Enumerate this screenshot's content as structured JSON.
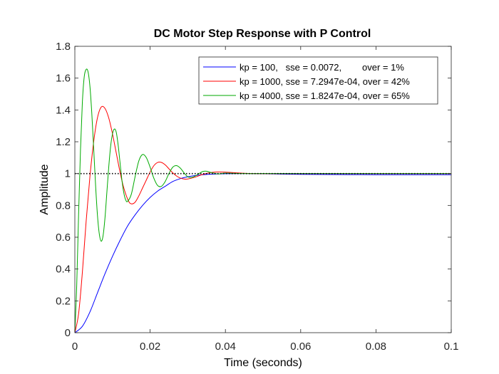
{
  "chart_data": {
    "type": "line",
    "title": "DC Motor Step Response with P Control",
    "xlabel": "Time (seconds)",
    "ylabel": "Amplitude",
    "xlim": [
      0,
      0.1
    ],
    "ylim": [
      0,
      1.8
    ],
    "xticks": [
      0,
      0.02,
      0.04,
      0.06,
      0.08,
      0.1
    ],
    "xtick_labels": [
      "0",
      "0.02",
      "0.04",
      "0.06",
      "0.08",
      "0.1"
    ],
    "yticks": [
      0,
      0.2,
      0.4,
      0.6,
      0.8,
      1,
      1.2,
      1.4,
      1.6,
      1.8
    ],
    "ytick_labels": [
      "0",
      "0.2",
      "0.4",
      "0.6",
      "0.8",
      "1",
      "1.2",
      "1.4",
      "1.6",
      "1.8"
    ],
    "grid": false,
    "legend_position": "top-right",
    "reference_line": {
      "y": 1,
      "style": "dotted",
      "color": "#000000"
    },
    "series": [
      {
        "name": "kp = 100,   sse = 0.0072,        over = 1%",
        "kp": 100,
        "sse": "0.0072",
        "overshoot_pct": 1,
        "color": "#0000ff",
        "x": [
          0,
          0.002,
          0.004,
          0.006,
          0.008,
          0.01,
          0.012,
          0.014,
          0.016,
          0.018,
          0.02,
          0.022,
          0.024,
          0.026,
          0.028,
          0.03,
          0.032,
          0.034,
          0.036,
          0.038,
          0.04,
          0.045,
          0.05,
          0.06,
          0.08,
          0.1
        ],
        "y": [
          0,
          0.04,
          0.13,
          0.25,
          0.37,
          0.48,
          0.58,
          0.67,
          0.74,
          0.8,
          0.85,
          0.89,
          0.92,
          0.95,
          0.968,
          0.98,
          0.988,
          0.993,
          0.996,
          0.998,
          0.999,
          1.0,
          0.999,
          0.995,
          0.993,
          0.993
        ]
      },
      {
        "name": "kp = 1000, sse = 7.2947e-04, over = 42%",
        "kp": 1000,
        "sse": "7.2947e-04",
        "overshoot_pct": 42,
        "color": "#ff0000",
        "x": [
          0,
          0.001,
          0.002,
          0.003,
          0.004,
          0.005,
          0.006,
          0.007,
          0.008,
          0.009,
          0.01,
          0.011,
          0.012,
          0.013,
          0.0142,
          0.015,
          0.016,
          0.017,
          0.018,
          0.019,
          0.02,
          0.021,
          0.022,
          0.023,
          0.024,
          0.025,
          0.026,
          0.027,
          0.028,
          0.029,
          0.03,
          0.032,
          0.034,
          0.036,
          0.038,
          0.04,
          0.045,
          0.05,
          0.06,
          0.08,
          0.1
        ],
        "y": [
          0,
          0.12,
          0.38,
          0.7,
          0.98,
          1.2,
          1.35,
          1.418,
          1.41,
          1.35,
          1.25,
          1.13,
          1.01,
          0.91,
          0.83,
          0.81,
          0.82,
          0.86,
          0.91,
          0.96,
          1.01,
          1.05,
          1.07,
          1.07,
          1.055,
          1.03,
          1.005,
          0.985,
          0.972,
          0.966,
          0.966,
          0.978,
          0.995,
          1.006,
          1.01,
          1.009,
          1.002,
          0.9995,
          0.9995,
          0.9995,
          0.9995
        ]
      },
      {
        "name": "kp = 4000, sse = 1.8247e-04, over = 65%",
        "kp": 4000,
        "sse": "1.8247e-04",
        "overshoot_pct": 65,
        "color": "#00aa00",
        "x": [
          0,
          0.0005,
          0.001,
          0.0015,
          0.002,
          0.0025,
          0.003,
          0.0035,
          0.004,
          0.0045,
          0.005,
          0.0055,
          0.006,
          0.0065,
          0.007,
          0.0075,
          0.008,
          0.0085,
          0.009,
          0.0095,
          0.01,
          0.0105,
          0.011,
          0.0115,
          0.012,
          0.0125,
          0.013,
          0.0135,
          0.014,
          0.015,
          0.016,
          0.017,
          0.018,
          0.019,
          0.02,
          0.021,
          0.022,
          0.023,
          0.024,
          0.025,
          0.026,
          0.027,
          0.028,
          0.029,
          0.03,
          0.031,
          0.032,
          0.033,
          0.034,
          0.035,
          0.036,
          0.038,
          0.04,
          0.045,
          0.05,
          0.06,
          0.08,
          0.1
        ],
        "y": [
          0,
          0.3,
          0.75,
          1.15,
          1.45,
          1.61,
          1.655,
          1.64,
          1.55,
          1.38,
          1.16,
          0.93,
          0.74,
          0.62,
          0.575,
          0.61,
          0.72,
          0.88,
          1.04,
          1.17,
          1.25,
          1.28,
          1.26,
          1.18,
          1.07,
          0.96,
          0.88,
          0.835,
          0.825,
          0.87,
          0.98,
          1.08,
          1.12,
          1.1,
          1.04,
          0.97,
          0.925,
          0.92,
          0.95,
          1.0,
          1.04,
          1.05,
          1.035,
          1.005,
          0.98,
          0.975,
          0.985,
          1.0,
          1.013,
          1.015,
          1.008,
          0.998,
          1.003,
          1.0,
          1.0,
          1.0,
          1.0,
          1.0
        ]
      }
    ]
  }
}
